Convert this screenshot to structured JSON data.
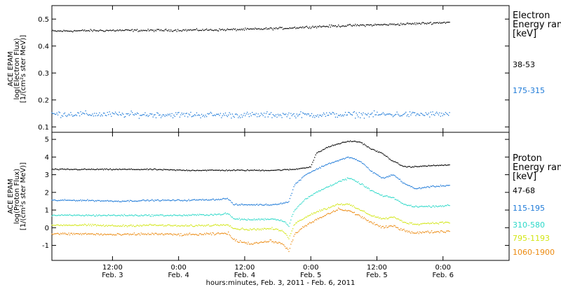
{
  "chart_data": [
    {
      "type": "scatter",
      "panel": "electron",
      "ylabel": [
        "ACE EPAM",
        "log(Electron Flux)",
        "[1/(cm²s ster MeV)]"
      ],
      "ylim": [
        0.08,
        0.55
      ],
      "yticks": [
        "0.1",
        "0.2",
        "0.3",
        "0.4",
        "0.5"
      ],
      "ytick_values": [
        0.1,
        0.2,
        0.3,
        0.4,
        0.5
      ],
      "legend": {
        "title": [
          "Electron",
          "Energy ran",
          "[keV]"
        ],
        "placement": "right",
        "entries": [
          {
            "label": "38-53",
            "color": "#000000"
          },
          {
            "label": "175-315",
            "color": "#1e7ad8"
          }
        ]
      },
      "series": [
        {
          "name": "38-53",
          "color": "#000000",
          "x": [
            0,
            6,
            12,
            18,
            24,
            30,
            36,
            42,
            48,
            54,
            60,
            66,
            72
          ],
          "y": [
            0.455,
            0.457,
            0.458,
            0.458,
            0.459,
            0.46,
            0.462,
            0.466,
            0.472,
            0.476,
            0.479,
            0.483,
            0.488
          ],
          "noise": 0.006
        },
        {
          "name": "175-315",
          "color": "#1e7ad8",
          "x": [
            0,
            12,
            24,
            36,
            48,
            60,
            72
          ],
          "y": [
            0.148,
            0.146,
            0.145,
            0.144,
            0.145,
            0.146,
            0.147
          ],
          "noise": 0.016
        }
      ]
    },
    {
      "type": "scatter",
      "panel": "proton",
      "ylabel": [
        "ACE EPAM",
        "log(Proton Flux)",
        "[1/(cm²s ster MeV)]"
      ],
      "ylim": [
        -1.85,
        5.4
      ],
      "yticks": [
        "-1",
        "0",
        "1",
        "2",
        "3",
        "4",
        "5"
      ],
      "ytick_values": [
        -1,
        0,
        1,
        2,
        3,
        4,
        5
      ],
      "legend": {
        "title": [
          "Proton",
          "Energy ran",
          "[keV]"
        ],
        "placement": "right",
        "entries": [
          {
            "label": "47-68",
            "color": "#000000"
          },
          {
            "label": "115-195",
            "color": "#1e7ad8"
          },
          {
            "label": "310-580",
            "color": "#2ad8c8"
          },
          {
            "label": "795-1193",
            "color": "#d2e614"
          },
          {
            "label": "1060-1900",
            "color": "#ec8a10"
          }
        ]
      },
      "series": [
        {
          "name": "47-68",
          "color": "#000000",
          "x": [
            0,
            6,
            12,
            18,
            24,
            30,
            36,
            40,
            44,
            47,
            48,
            50,
            52,
            54,
            56,
            58,
            60,
            62,
            64,
            66,
            68,
            72
          ],
          "y": [
            3.3,
            3.3,
            3.3,
            3.3,
            3.25,
            3.25,
            3.25,
            3.25,
            3.3,
            3.45,
            4.2,
            4.55,
            4.75,
            4.9,
            4.85,
            4.45,
            4.2,
            3.75,
            3.45,
            3.45,
            3.5,
            3.55
          ],
          "noise": 0.05
        },
        {
          "name": "115-195",
          "color": "#1e7ad8",
          "x": [
            0,
            6,
            12,
            18,
            24,
            30,
            32,
            33,
            36,
            40,
            43,
            44,
            46,
            48,
            50,
            52,
            54,
            56,
            58,
            60,
            62,
            64,
            66,
            68,
            72
          ],
          "y": [
            1.55,
            1.55,
            1.5,
            1.55,
            1.55,
            1.6,
            1.65,
            1.3,
            1.3,
            1.3,
            1.45,
            2.4,
            3.0,
            3.3,
            3.6,
            3.8,
            4.0,
            3.75,
            3.2,
            2.8,
            3.0,
            2.5,
            2.2,
            2.3,
            2.4
          ],
          "noise": 0.06
        },
        {
          "name": "310-580",
          "color": "#2ad8c8",
          "x": [
            0,
            6,
            12,
            18,
            24,
            30,
            32,
            33,
            36,
            40,
            42,
            43,
            44,
            46,
            48,
            50,
            52,
            54,
            56,
            58,
            60,
            62,
            64,
            66,
            68,
            72
          ],
          "y": [
            0.7,
            0.7,
            0.7,
            0.7,
            0.7,
            0.75,
            0.8,
            0.5,
            0.45,
            0.5,
            0.4,
            0.1,
            1.0,
            1.6,
            2.0,
            2.3,
            2.6,
            2.8,
            2.5,
            2.1,
            1.8,
            1.7,
            1.3,
            1.2,
            1.2,
            1.25
          ],
          "noise": 0.07
        },
        {
          "name": "795-1193",
          "color": "#d2e614",
          "x": [
            0,
            6,
            12,
            18,
            24,
            30,
            32,
            33,
            36,
            40,
            42,
            43,
            44,
            46,
            48,
            50,
            52,
            54,
            56,
            58,
            60,
            62,
            64,
            66,
            68,
            72
          ],
          "y": [
            0.15,
            0.15,
            0.1,
            0.15,
            0.1,
            0.15,
            0.2,
            -0.05,
            -0.1,
            -0.05,
            -0.2,
            -0.6,
            0.2,
            0.6,
            0.9,
            1.1,
            1.35,
            1.3,
            1.0,
            0.7,
            0.5,
            0.6,
            0.3,
            0.2,
            0.25,
            0.3
          ],
          "noise": 0.08
        },
        {
          "name": "1060-1900",
          "color": "#ec8a10",
          "x": [
            0,
            6,
            12,
            18,
            24,
            30,
            32,
            33,
            36,
            40,
            42,
            43,
            44,
            46,
            48,
            50,
            52,
            54,
            56,
            58,
            60,
            62,
            64,
            66,
            68,
            72
          ],
          "y": [
            -0.35,
            -0.35,
            -0.4,
            -0.35,
            -0.4,
            -0.35,
            -0.3,
            -0.7,
            -0.9,
            -0.75,
            -0.95,
            -1.3,
            -0.4,
            0.1,
            0.45,
            0.75,
            1.05,
            0.95,
            0.65,
            0.3,
            0.0,
            0.1,
            -0.15,
            -0.3,
            -0.25,
            -0.2
          ],
          "noise": 0.1
        }
      ]
    }
  ],
  "x_axis": {
    "xlim": [
      0,
      83
    ],
    "ticks": [
      {
        "t": 11,
        "line1": "12:00",
        "line2": "Feb. 3"
      },
      {
        "t": 23,
        "line1": "0:00",
        "line2": "Feb. 4"
      },
      {
        "t": 35,
        "line1": "12:00",
        "line2": "Feb. 4"
      },
      {
        "t": 47,
        "line1": "0:00",
        "line2": "Feb. 5"
      },
      {
        "t": 59,
        "line1": "12:00",
        "line2": "Feb. 5"
      },
      {
        "t": 71,
        "line1": "0:00",
        "line2": "Feb. 6"
      }
    ],
    "label": "hours:minutes, Feb.  3, 2011 - Feb.  6, 2011"
  }
}
